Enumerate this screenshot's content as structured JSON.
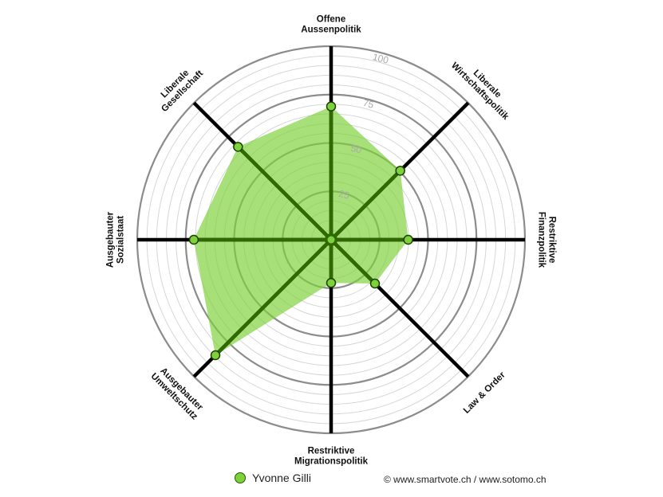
{
  "chart_data": {
    "type": "radar",
    "axes": [
      [
        "Offene",
        "Aussenpolitik"
      ],
      [
        "Liberale",
        "Wirtschaftspolitik"
      ],
      [
        "Restriktive",
        "Finanzpolitik"
      ],
      [
        "Law & Order"
      ],
      [
        "Restriktive",
        "Migrationspolitik"
      ],
      [
        "Ausgebauter",
        "Umweltschutz"
      ],
      [
        "Ausgebauter",
        "Sozialstaat"
      ],
      [
        "Liberale",
        "Gesellschaft"
      ]
    ],
    "rlim": [
      0,
      100
    ],
    "ticks": [
      25,
      50,
      75,
      100
    ],
    "series": [
      {
        "name": "Yvonne Gilli",
        "values": [
          71,
          52,
          41,
          33,
          23,
          87,
          73,
          70
        ],
        "color": "#7dd13a"
      }
    ]
  },
  "legend": {
    "label": "Yvonne Gilli"
  },
  "footer": {
    "copyright": "© www.smartvote.ch / www.sotomo.ch"
  }
}
